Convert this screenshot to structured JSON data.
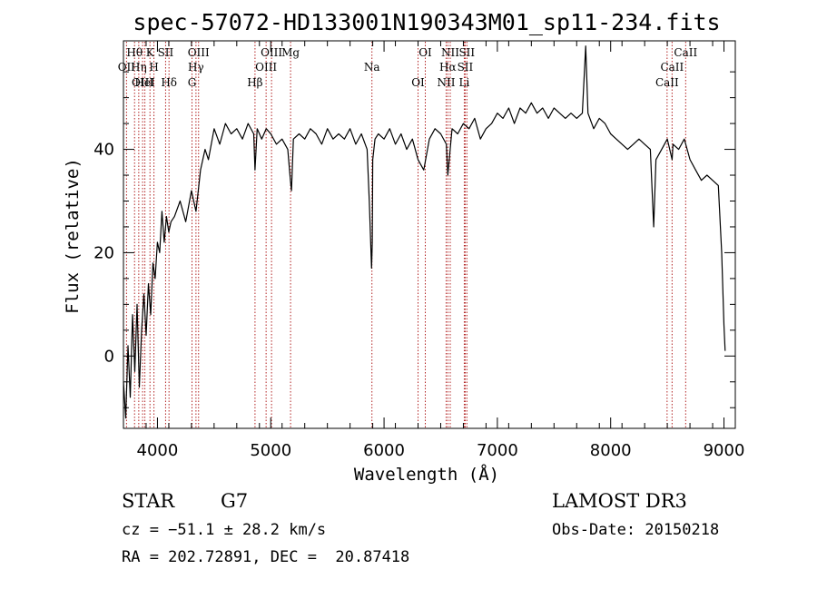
{
  "chart_data": {
    "type": "line",
    "title": "spec-57072-HD133001N190343M01_sp11-234.fits",
    "xlabel": "Wavelength (Å)",
    "ylabel": "Flux (relative)",
    "xlim": [
      3700,
      9100
    ],
    "ylim": [
      -14,
      61
    ],
    "xticks": [
      4000,
      5000,
      6000,
      7000,
      8000,
      9000
    ],
    "yticks": [
      0,
      20,
      40
    ],
    "grid": false,
    "series": [
      {
        "line_color": "#000000",
        "x": [
          3700,
          3720,
          3740,
          3760,
          3780,
          3800,
          3820,
          3840,
          3860,
          3880,
          3900,
          3920,
          3940,
          3960,
          3980,
          4000,
          4020,
          4040,
          4060,
          4080,
          4100,
          4120,
          4150,
          4200,
          4250,
          4300,
          4340,
          4380,
          4420,
          4450,
          4500,
          4550,
          4600,
          4650,
          4700,
          4750,
          4800,
          4850,
          4861,
          4880,
          4920,
          4960,
          5000,
          5050,
          5100,
          5150,
          5173,
          5183,
          5200,
          5250,
          5300,
          5350,
          5400,
          5450,
          5500,
          5550,
          5600,
          5650,
          5700,
          5750,
          5800,
          5850,
          5870,
          5890,
          5896,
          5900,
          5920,
          5950,
          6000,
          6050,
          6100,
          6150,
          6200,
          6250,
          6300,
          6350,
          6400,
          6450,
          6500,
          6550,
          6563,
          6600,
          6650,
          6700,
          6750,
          6800,
          6850,
          6900,
          6950,
          7000,
          7050,
          7100,
          7150,
          7200,
          7250,
          7300,
          7350,
          7400,
          7450,
          7500,
          7550,
          7600,
          7650,
          7700,
          7750,
          7780,
          7800,
          7850,
          7900,
          7950,
          8000,
          8050,
          8100,
          8150,
          8200,
          8250,
          8300,
          8350,
          8380,
          8400,
          8450,
          8500,
          8542,
          8550,
          8600,
          8650,
          8700,
          8750,
          8800,
          8850,
          8900,
          8950,
          8980,
          9000,
          9010
        ],
        "y": [
          -5,
          -12,
          2,
          -8,
          8,
          -3,
          10,
          -6,
          5,
          12,
          4,
          14,
          8,
          18,
          15,
          22,
          20,
          28,
          22,
          27,
          24,
          26,
          27,
          30,
          26,
          32,
          28,
          36,
          40,
          38,
          44,
          41,
          45,
          43,
          44,
          42,
          45,
          43,
          36,
          44,
          42,
          44,
          43,
          41,
          42,
          40,
          34,
          32,
          42,
          43,
          42,
          44,
          43,
          41,
          44,
          42,
          43,
          42,
          44,
          41,
          43,
          40,
          30,
          17,
          22,
          38,
          42,
          43,
          42,
          44,
          41,
          43,
          40,
          42,
          38,
          36,
          42,
          44,
          43,
          41,
          35,
          44,
          43,
          45,
          44,
          46,
          42,
          44,
          45,
          47,
          46,
          48,
          45,
          48,
          47,
          49,
          47,
          48,
          46,
          48,
          47,
          46,
          47,
          46,
          47,
          60,
          47,
          44,
          46,
          45,
          43,
          42,
          41,
          40,
          41,
          42,
          41,
          40,
          25,
          38,
          40,
          42,
          38,
          41,
          40,
          42,
          38,
          36,
          34,
          35,
          34,
          33,
          20,
          6,
          1
        ]
      }
    ],
    "lines": [
      {
        "name": "Hθ",
        "x": 3798
      },
      {
        "name": "OII",
        "x": 3727
      },
      {
        "name": "OIII",
        "x": 3869
      },
      {
        "name": "K",
        "x": 3934
      },
      {
        "name": "H",
        "x": 3969
      },
      {
        "name": "HeI",
        "x": 3889
      },
      {
        "name": "SII",
        "x": 4072
      },
      {
        "name": "Hη",
        "x": 3835
      },
      {
        "name": "Hδ",
        "x": 4102
      },
      {
        "name": "OIII",
        "x": 4363
      },
      {
        "name": "Hγ",
        "x": 4340
      },
      {
        "name": "G",
        "x": 4305
      },
      {
        "name": "OIII",
        "x": 5007
      },
      {
        "name": "OIII",
        "x": 4959
      },
      {
        "name": "Hβ",
        "x": 4861
      },
      {
        "name": "Mg",
        "x": 5175
      },
      {
        "name": "Na",
        "x": 5893
      },
      {
        "name": "OI",
        "x": 6300
      },
      {
        "name": "OI",
        "x": 6364
      },
      {
        "name": "Hα",
        "x": 6563
      },
      {
        "name": "NII",
        "x": 6548
      },
      {
        "name": "NII",
        "x": 6584
      },
      {
        "name": "SII",
        "x": 6716
      },
      {
        "name": "Li",
        "x": 6708
      },
      {
        "name": "SII",
        "x": 6731
      },
      {
        "name": "CaII",
        "x": 8542
      },
      {
        "name": "CaII",
        "x": 8498
      },
      {
        "name": "CaII",
        "x": 8662
      }
    ],
    "line_color": "#b22222"
  },
  "info": {
    "obj_class": "STAR",
    "subclass": "G7",
    "survey": "LAMOST DR3",
    "cz": "cz = −51.1 ± 28.2 km/s",
    "obs_date": "Obs-Date: 20150218",
    "radec": "RA = 202.72891, DEC =  20.87418"
  }
}
